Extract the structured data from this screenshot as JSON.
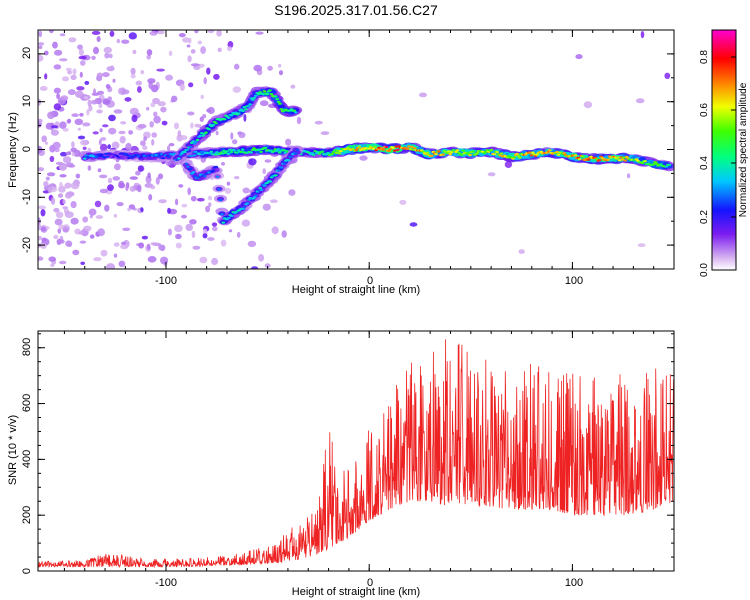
{
  "title": "S196.2025.317.01.56.C27",
  "top_panel": {
    "xlabel": "Height of straight line (km)",
    "ylabel": "Frequency (Hz)",
    "colorbar_label": "Normalized spectral amplitude",
    "x_ticks": [
      "-100",
      "0",
      "100"
    ],
    "y_ticks": [
      "-20",
      "-10",
      "0",
      "10",
      "20"
    ],
    "colorbar_ticks": [
      "0.0",
      "0.2",
      "0.4",
      "0.6",
      "0.8"
    ],
    "colors": {
      "low": "#e8d4f4",
      "mid": "#5a00e0",
      "high": "#ff2020"
    }
  },
  "bottom_panel": {
    "xlabel": "Height of straight line (km)",
    "ylabel": "SNR (10 * v/v)",
    "x_ticks": [
      "-100",
      "0",
      "100"
    ],
    "y_ticks": [
      "0",
      "200",
      "400",
      "600",
      "800"
    ],
    "line_color": "#ee2222"
  },
  "chart_data": [
    {
      "type": "heatmap",
      "title": "S196.2025.317.01.56.C27",
      "xlabel": "Height of straight line (km)",
      "ylabel": "Frequency (Hz)",
      "xlim": [
        -163,
        150
      ],
      "ylim": [
        -25,
        25
      ],
      "colorbar": {
        "label": "Normalized spectral amplitude",
        "range": [
          0,
          0.9
        ]
      },
      "ridges": [
        {
          "name": "main-carrier",
          "x": [
            -140,
            -125,
            -105,
            -90,
            -70,
            -50,
            -35,
            -20,
            -10,
            0,
            10,
            20,
            30,
            40,
            50,
            60,
            70,
            80,
            90,
            100,
            110,
            120,
            130,
            140,
            148
          ],
          "y": [
            -1.5,
            -1.2,
            -1.5,
            -1.0,
            -0.5,
            0.0,
            -0.5,
            -0.8,
            0.0,
            0.5,
            0.0,
            0.5,
            -1.0,
            -0.5,
            -0.8,
            -0.5,
            -1.5,
            -1.0,
            -0.5,
            -1.5,
            -2.0,
            -1.8,
            -2.0,
            -3.0,
            -3.5
          ],
          "amp": [
            0.35,
            0.2,
            0.3,
            0.3,
            0.45,
            0.5,
            0.4,
            0.45,
            0.75,
            0.7,
            0.8,
            0.7,
            0.7,
            0.6,
            0.65,
            0.6,
            0.65,
            0.7,
            0.65,
            0.7,
            0.7,
            0.7,
            0.6,
            0.5,
            0.45
          ]
        },
        {
          "name": "upper-trace",
          "x": [
            -95,
            -85,
            -80,
            -75,
            -68,
            -60,
            -55,
            -48,
            -42,
            -36
          ],
          "y": [
            -2,
            2,
            4,
            6,
            7,
            9,
            12,
            12,
            8,
            8
          ],
          "amp": [
            0.3,
            0.4,
            0.45,
            0.45,
            0.4,
            0.4,
            0.45,
            0.5,
            0.5,
            0.45
          ]
        },
        {
          "name": "lower-trace",
          "x": [
            -90,
            -85,
            -80,
            -75,
            -72,
            -66,
            -62,
            -55,
            -48,
            -42,
            -35
          ],
          "y": [
            -3,
            -6,
            -5,
            -4,
            -15,
            -13,
            -12,
            -9,
            -6,
            -3,
            0
          ],
          "amp": [
            0.3,
            0.3,
            0.3,
            0.25,
            0.4,
            0.4,
            0.35,
            0.35,
            0.4,
            0.35,
            0.3
          ]
        }
      ]
    },
    {
      "type": "line",
      "xlabel": "Height of straight line (km)",
      "ylabel": "SNR (10 * v/v)",
      "xlim": [
        -163,
        150
      ],
      "ylim": [
        0,
        860
      ],
      "series": [
        {
          "name": "SNR",
          "envelope_x": [
            -163,
            -140,
            -125,
            -110,
            -90,
            -70,
            -55,
            -45,
            -35,
            -25,
            -20,
            -15,
            -10,
            -5,
            0,
            10,
            20,
            30,
            40,
            50,
            60,
            70,
            80,
            90,
            100,
            110,
            120,
            130,
            140,
            150
          ],
          "envelope_min": [
            15,
            15,
            15,
            15,
            15,
            20,
            25,
            30,
            40,
            60,
            80,
            100,
            120,
            150,
            180,
            220,
            250,
            250,
            230,
            230,
            230,
            220,
            220,
            220,
            200,
            200,
            200,
            200,
            220,
            250
          ],
          "envelope_max": [
            35,
            40,
            75,
            45,
            45,
            55,
            80,
            110,
            180,
            240,
            560,
            300,
            440,
            400,
            520,
            600,
            800,
            780,
            850,
            800,
            790,
            720,
            760,
            760,
            730,
            700,
            760,
            640,
            750,
            720
          ]
        }
      ]
    }
  ]
}
